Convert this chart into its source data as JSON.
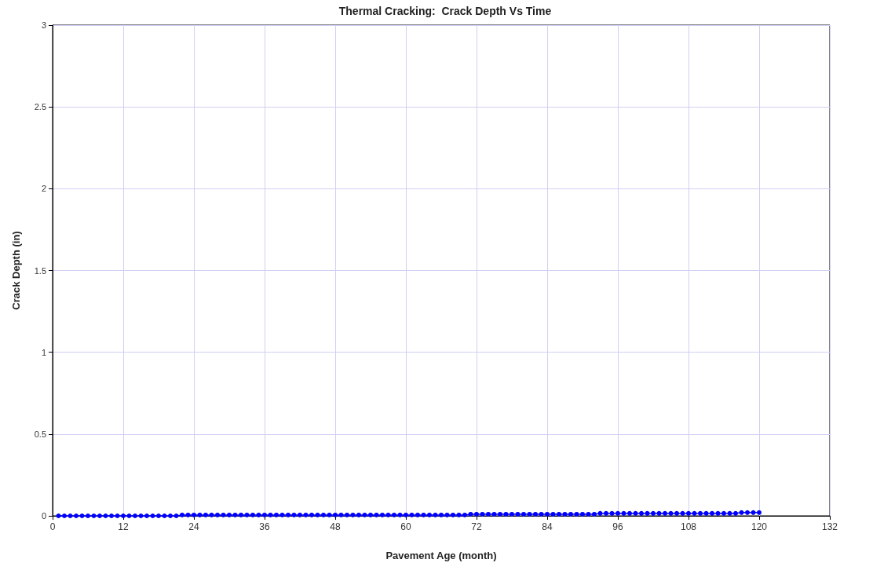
{
  "chart_data": {
    "type": "line",
    "title": "Thermal Cracking:  Crack Depth Vs Time",
    "xlabel": "Pavement Age (month)",
    "ylabel": "Crack Depth (in)",
    "x": [
      1,
      2,
      3,
      4,
      5,
      6,
      7,
      8,
      9,
      10,
      11,
      12,
      13,
      14,
      15,
      16,
      17,
      18,
      19,
      20,
      21,
      22,
      23,
      24,
      25,
      26,
      27,
      28,
      29,
      30,
      31,
      32,
      33,
      34,
      35,
      36,
      37,
      38,
      39,
      40,
      41,
      42,
      43,
      44,
      45,
      46,
      47,
      48,
      49,
      50,
      51,
      52,
      53,
      54,
      55,
      56,
      57,
      58,
      59,
      60,
      61,
      62,
      63,
      64,
      65,
      66,
      67,
      68,
      69,
      70,
      71,
      72,
      73,
      74,
      75,
      76,
      77,
      78,
      79,
      80,
      81,
      82,
      83,
      84,
      85,
      86,
      87,
      88,
      89,
      90,
      91,
      92,
      93,
      94,
      95,
      96,
      97,
      98,
      99,
      100,
      101,
      102,
      103,
      104,
      105,
      106,
      107,
      108,
      109,
      110,
      111,
      112,
      113,
      114,
      115,
      116,
      117,
      118,
      119,
      120
    ],
    "series": [
      {
        "color": "#0000ff",
        "values": [
          0,
          0,
          0,
          0,
          0,
          0,
          0,
          0,
          0,
          0,
          0,
          0,
          0,
          0,
          0,
          0,
          0,
          0,
          0,
          0,
          0,
          0.005,
          0.005,
          0.005,
          0.005,
          0.005,
          0.005,
          0.005,
          0.005,
          0.005,
          0.005,
          0.005,
          0.005,
          0.005,
          0.005,
          0.005,
          0.005,
          0.005,
          0.005,
          0.005,
          0.005,
          0.005,
          0.005,
          0.005,
          0.005,
          0.005,
          0.005,
          0.005,
          0.005,
          0.005,
          0.005,
          0.005,
          0.005,
          0.005,
          0.005,
          0.005,
          0.005,
          0.005,
          0.005,
          0.005,
          0.005,
          0.005,
          0.005,
          0.005,
          0.005,
          0.005,
          0.005,
          0.005,
          0.005,
          0.005,
          0.01,
          0.01,
          0.01,
          0.01,
          0.01,
          0.01,
          0.01,
          0.01,
          0.01,
          0.01,
          0.01,
          0.01,
          0.01,
          0.01,
          0.01,
          0.01,
          0.01,
          0.01,
          0.01,
          0.01,
          0.01,
          0.01,
          0.015,
          0.015,
          0.015,
          0.015,
          0.015,
          0.015,
          0.015,
          0.015,
          0.015,
          0.015,
          0.015,
          0.015,
          0.015,
          0.015,
          0.015,
          0.015,
          0.015,
          0.015,
          0.015,
          0.015,
          0.015,
          0.015,
          0.015,
          0.015,
          0.02,
          0.02,
          0.02,
          0.02
        ]
      }
    ],
    "xlim": [
      0,
      132
    ],
    "xticks": [
      0,
      12,
      24,
      36,
      48,
      60,
      72,
      84,
      96,
      108,
      120,
      132
    ],
    "ylim": [
      0,
      3
    ],
    "yticks": [
      0,
      0.5,
      1,
      1.5,
      2,
      2.5,
      3
    ],
    "grid": true,
    "marker": "circle",
    "line_style": "solid"
  }
}
